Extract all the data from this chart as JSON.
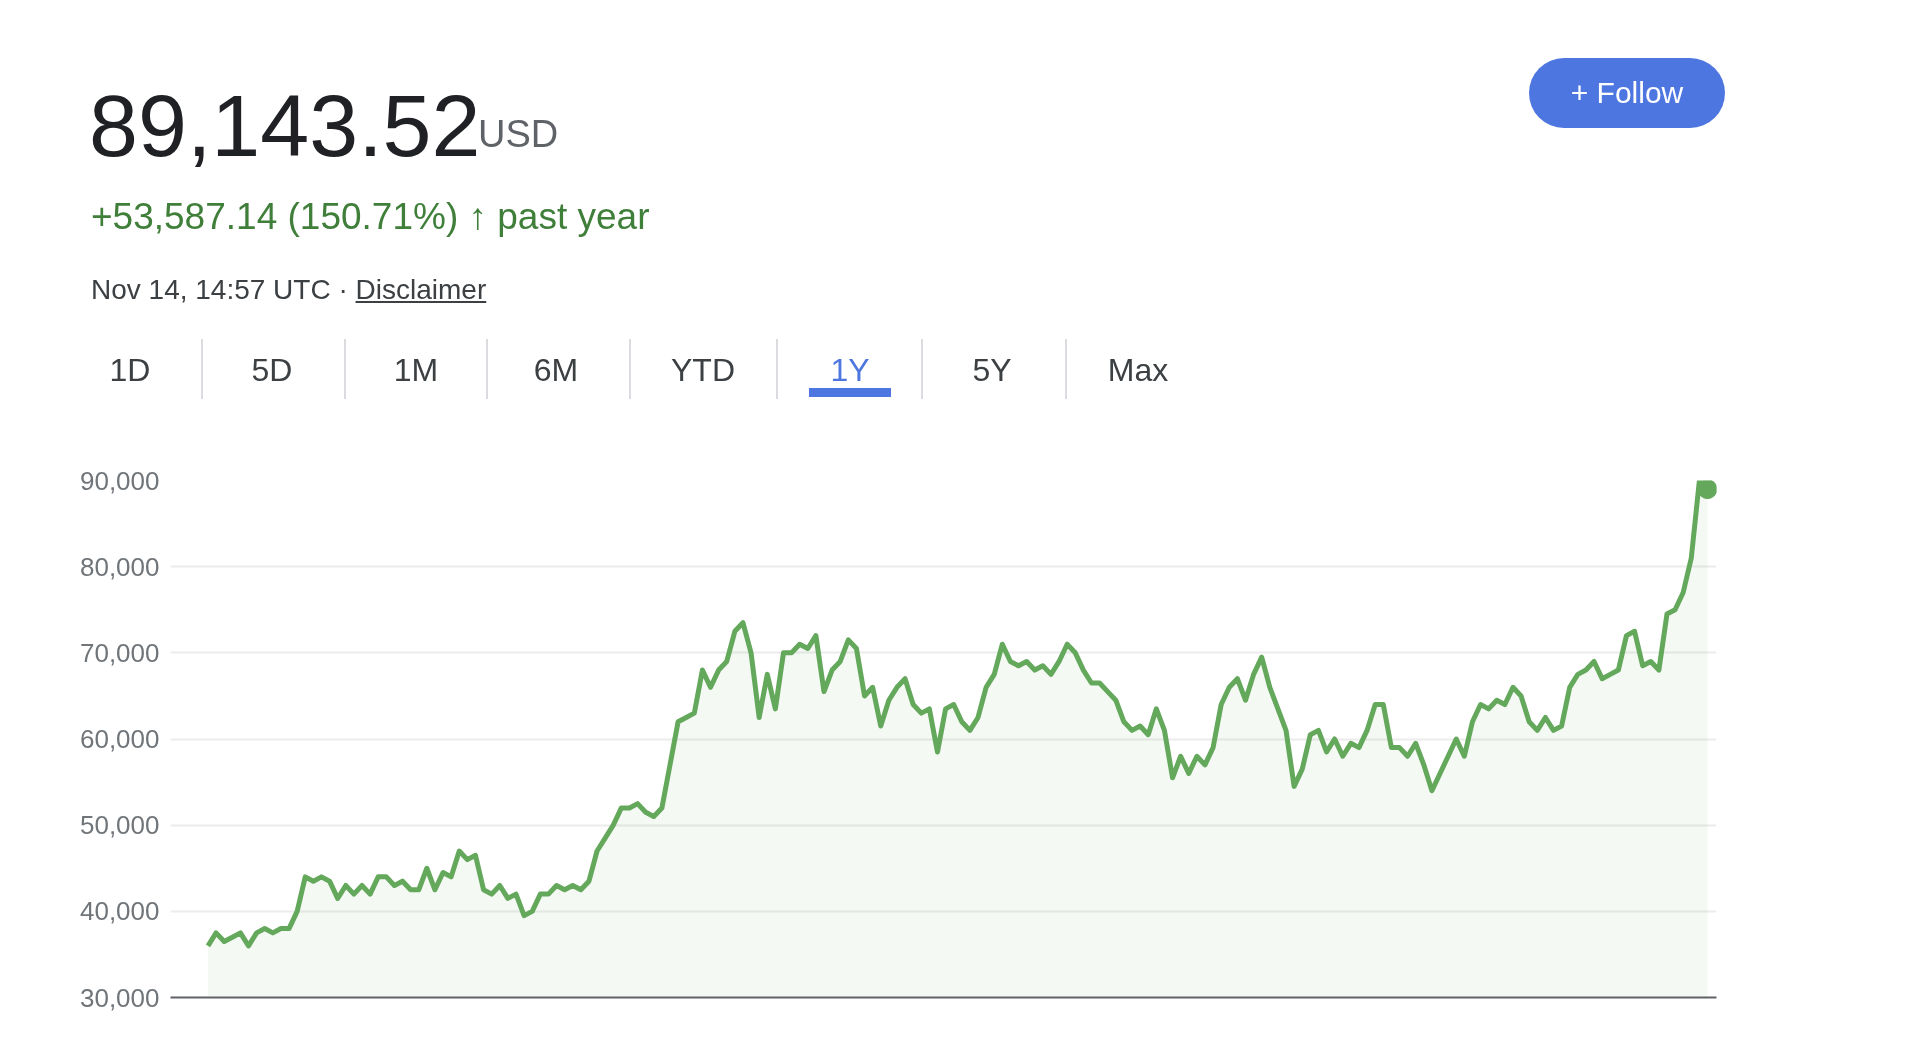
{
  "chart_data": {
    "type": "area",
    "title": "89,143.52",
    "subtitle": "+53,587.14 (150.71%) ↑ past year",
    "annotations": [
      "USD",
      "Nov 14, 14:57 UTC ·",
      "Disclaimer",
      "+ Follow",
      "1D",
      "5D",
      "1M",
      "6M",
      "YTD",
      "1Y",
      "5Y",
      "Max"
    ],
    "categories": [
      null,
      null,
      null,
      null,
      null,
      null,
      null,
      null,
      null,
      null,
      null,
      null,
      null,
      null,
      null,
      null,
      null,
      null,
      null,
      null,
      null,
      null,
      null,
      null,
      null,
      null,
      null,
      null,
      null,
      null,
      null,
      null,
      null,
      null,
      null,
      null,
      null,
      null,
      null,
      null,
      null,
      null,
      null,
      null,
      null,
      null,
      null,
      null,
      null,
      null,
      null,
      null,
      null,
      null,
      null,
      null,
      null,
      null,
      null,
      null,
      null,
      null,
      null,
      null,
      null,
      null,
      null,
      null,
      null,
      null,
      null,
      null,
      null,
      null,
      null,
      null,
      null,
      null,
      null,
      null,
      null,
      null,
      null,
      null,
      null,
      null,
      null,
      null,
      null,
      null,
      null,
      null,
      null,
      null,
      null,
      null,
      null,
      null,
      null,
      null,
      null,
      null,
      null,
      null,
      null,
      null,
      null,
      null,
      null,
      null,
      null,
      null,
      null,
      null,
      null,
      null,
      null,
      null,
      null,
      null,
      null,
      null,
      null,
      null,
      null,
      null,
      null,
      null,
      null,
      null,
      null,
      null,
      null,
      null,
      null,
      null,
      null,
      null,
      null,
      null,
      null,
      null,
      null,
      null,
      null,
      null,
      null,
      null,
      null,
      null,
      null,
      null,
      null,
      null,
      null,
      null,
      null,
      null,
      null,
      null,
      null,
      null,
      null,
      null,
      null,
      null,
      null,
      null,
      null,
      null,
      null,
      null,
      null,
      null,
      null,
      null,
      null,
      null,
      null,
      null,
      null,
      null,
      null,
      null,
      null,
      null
    ],
    "series": [
      {
        "color": "#64a85c",
        "values": [
          36000,
          37500,
          36500,
          37000,
          37500,
          36000,
          37500,
          38000,
          37500,
          38000,
          38000,
          40000,
          44000,
          43500,
          44000,
          43500,
          41500,
          43000,
          42000,
          43000,
          42000,
          44000,
          44000,
          43000,
          43500,
          42500,
          42500,
          45000,
          42500,
          44500,
          44000,
          47000,
          46000,
          46500,
          42500,
          42000,
          43000,
          41500,
          42000,
          39500,
          40000,
          42000,
          42000,
          43000,
          42500,
          43000,
          42500,
          43500,
          47000,
          48500,
          50000,
          52000,
          52000,
          52500,
          51500,
          51000,
          52000,
          57000,
          62000,
          62500,
          63000,
          68000,
          66000,
          68000,
          69000,
          72500,
          73500,
          70000,
          62500,
          67500,
          63500,
          70000,
          70000,
          71000,
          70500,
          72000,
          65500,
          68000,
          69000,
          71500,
          70500,
          65000,
          66000,
          61500,
          64500,
          66000,
          67000,
          64000,
          63000,
          63500,
          58500,
          63500,
          64000,
          62000,
          61000,
          62500,
          66000,
          67500,
          71000,
          69000,
          68500,
          69000,
          68000,
          68500,
          67500,
          69000,
          71000,
          70000,
          68000,
          66500,
          66500,
          65500,
          64500,
          62000,
          61000,
          61500,
          60500,
          63500,
          61000,
          55500,
          58000,
          56000,
          58000,
          57000,
          59000,
          64000,
          66000,
          67000,
          64500,
          67500,
          69500,
          66000,
          63500,
          61000,
          54500,
          56500,
          60500,
          61000,
          58500,
          60000,
          58000,
          59500,
          59000,
          61000,
          64000,
          64000,
          59000,
          59000,
          58000,
          59500,
          57000,
          54000,
          56000,
          58000,
          60000,
          58000,
          62000,
          64000,
          63500,
          64500,
          64000,
          66000,
          65000,
          62000,
          61000,
          62500,
          61000,
          61500,
          66000,
          67500,
          68000,
          69000,
          67000,
          67500,
          68000,
          72000,
          72500,
          68500,
          69000,
          68000,
          74500,
          75000,
          77000,
          81000,
          90000,
          89000
        ]
      }
    ],
    "ylim": [
      30000,
      90000
    ],
    "yticks": [
      {
        "value": 30000,
        "label": "30,000"
      },
      {
        "value": 40000,
        "label": "40,000"
      },
      {
        "value": 50000,
        "label": "50,000"
      },
      {
        "value": 60000,
        "label": "60,000"
      },
      {
        "value": 70000,
        "label": "70,000"
      },
      {
        "value": 80000,
        "label": "80,000"
      },
      {
        "value": 90000,
        "label": "90,000"
      }
    ],
    "grid": "y",
    "tick_labels": "y"
  }
}
